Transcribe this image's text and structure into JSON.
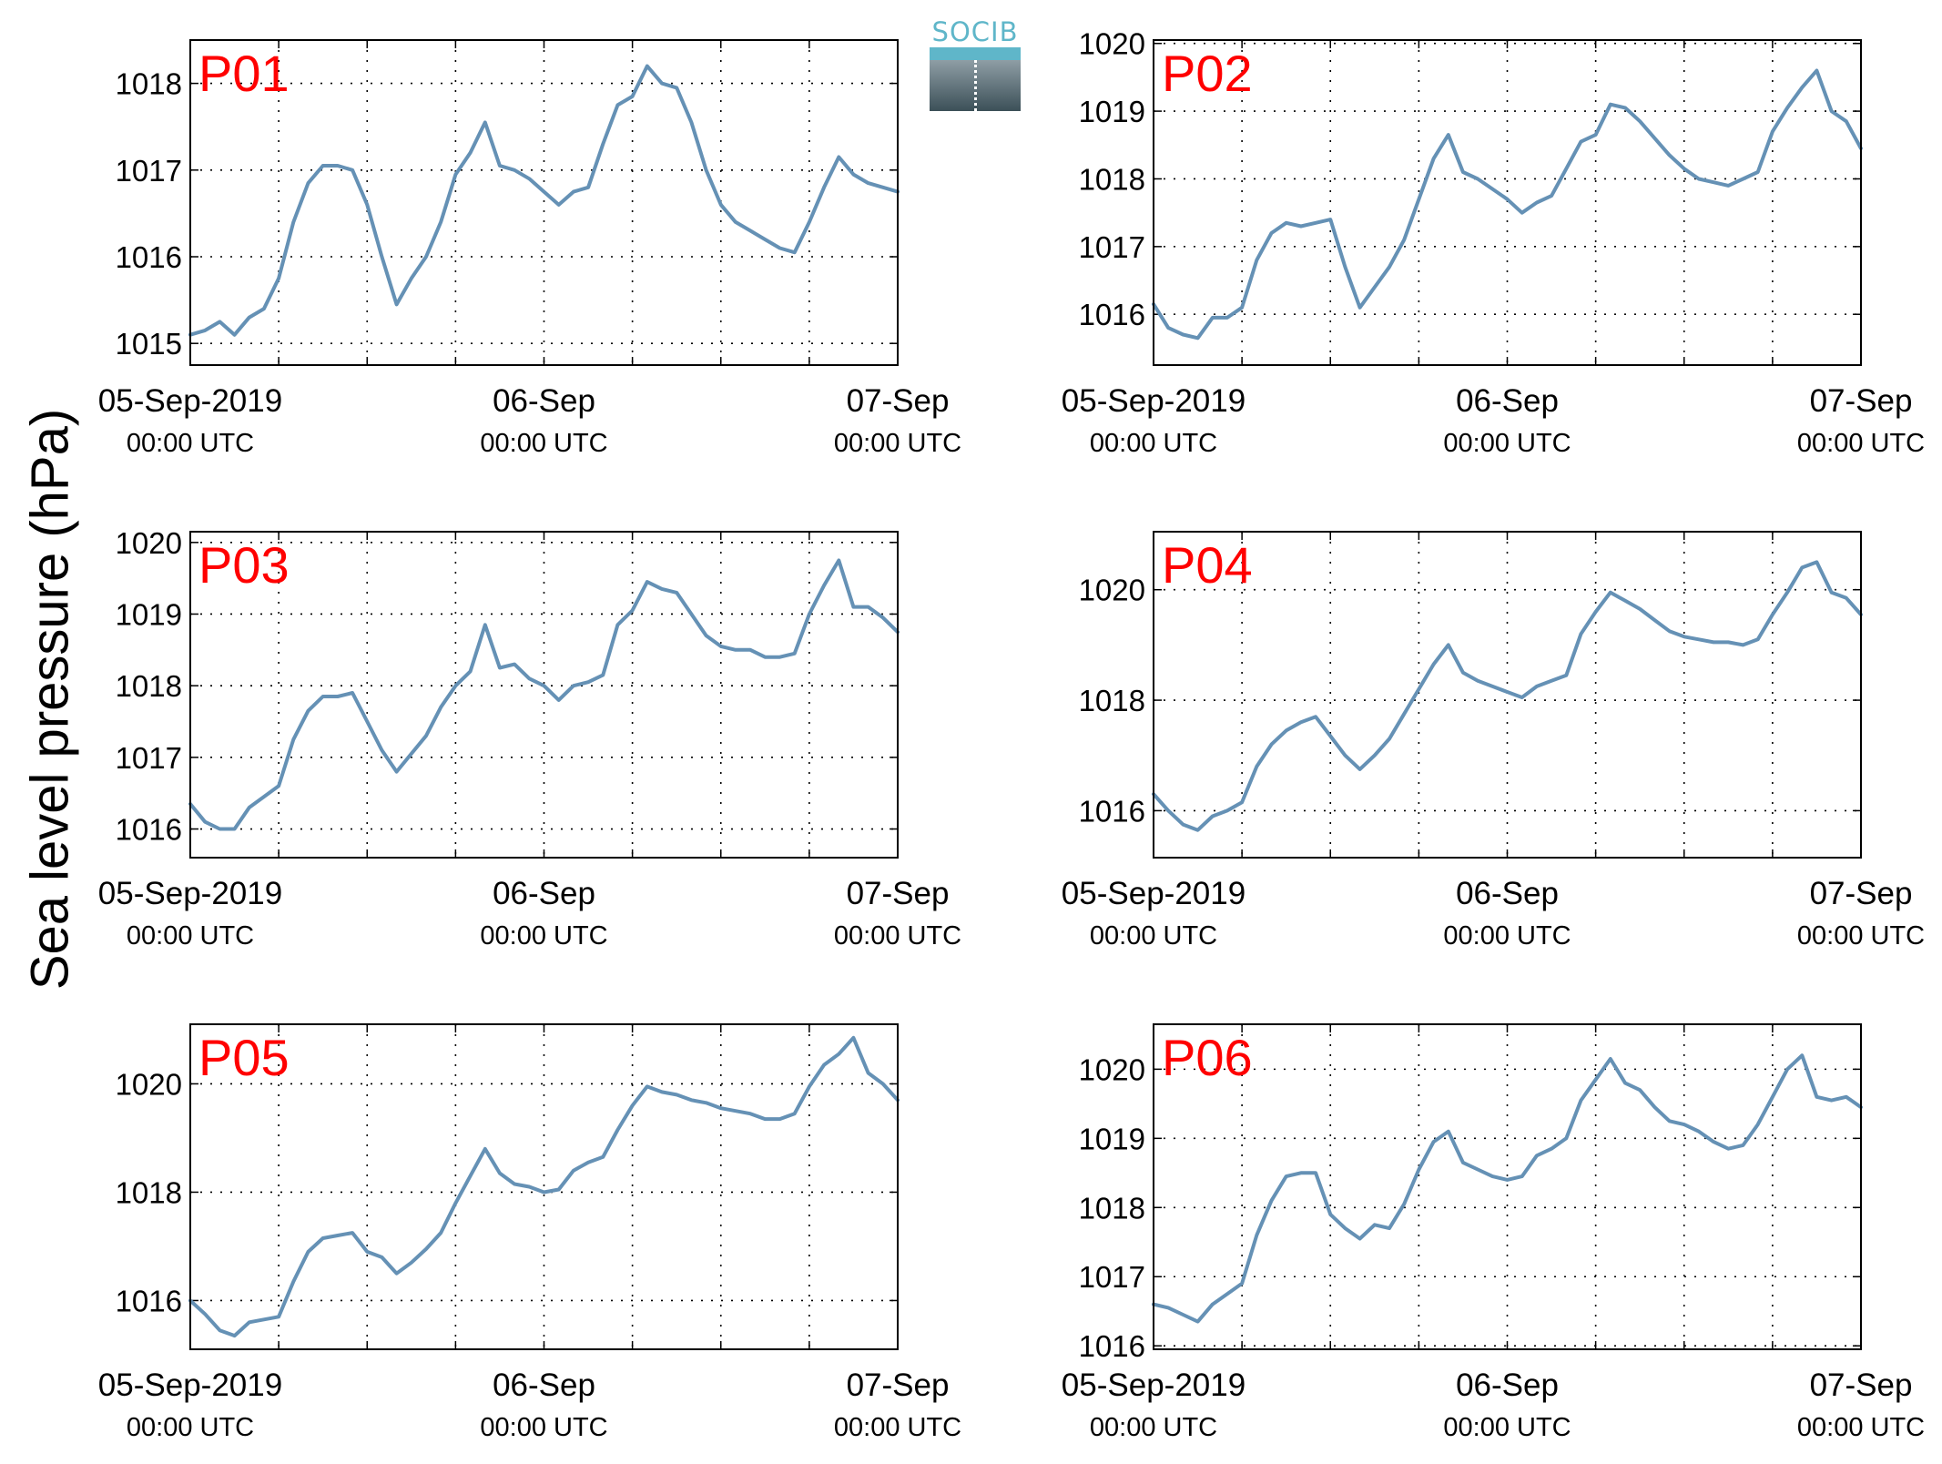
{
  "figure": {
    "ylabel": "Sea level pressure (hPa)",
    "logo_text": "SOCIB",
    "colors": {
      "line": "#6591b5",
      "panel_label": "#ff0000",
      "axes": "#000000",
      "grid": "#000000"
    }
  },
  "chart_data": [
    {
      "type": "line",
      "title": "P01",
      "x_ticks": [
        {
          "main": "05-Sep-2019",
          "sub": "00:00 UTC"
        },
        {
          "main": "06-Sep",
          "sub": "00:00 UTC"
        },
        {
          "main": "07-Sep",
          "sub": "00:00 UTC"
        }
      ],
      "xlim_hours": [
        0,
        48
      ],
      "ylim": [
        1014.75,
        1018.5
      ],
      "yticks": [
        1015,
        1016,
        1017,
        1018
      ],
      "grid": true,
      "series": [
        {
          "x_hours": [
            0,
            1,
            2,
            3,
            4,
            5,
            6,
            7,
            8,
            9,
            10,
            11,
            12,
            13,
            14,
            15,
            16,
            17,
            18,
            19,
            20,
            21,
            22,
            23,
            24,
            25,
            26,
            27,
            28,
            29,
            30,
            31,
            32,
            33,
            34,
            35,
            36,
            37,
            38,
            39,
            40,
            41,
            42,
            43,
            44,
            45,
            46,
            47,
            48
          ],
          "values": [
            1015.1,
            1015.15,
            1015.25,
            1015.1,
            1015.3,
            1015.4,
            1015.75,
            1016.4,
            1016.85,
            1017.05,
            1017.05,
            1017.0,
            1016.6,
            1016.0,
            1015.45,
            1015.75,
            1016.0,
            1016.4,
            1016.95,
            1017.2,
            1017.55,
            1017.05,
            1017.0,
            1016.9,
            1016.75,
            1016.6,
            1016.75,
            1016.8,
            1017.3,
            1017.75,
            1017.85,
            1018.2,
            1018.0,
            1017.95,
            1017.55,
            1017.0,
            1016.6,
            1016.4,
            1016.3,
            1016.2,
            1016.1,
            1016.05,
            1016.4,
            1016.8,
            1017.15,
            1016.95,
            1016.85,
            1016.8,
            1016.75
          ]
        }
      ]
    },
    {
      "type": "line",
      "title": "P02",
      "x_ticks": [
        {
          "main": "05-Sep-2019",
          "sub": "00:00 UTC"
        },
        {
          "main": "06-Sep",
          "sub": "00:00 UTC"
        },
        {
          "main": "07-Sep",
          "sub": "00:00 UTC"
        }
      ],
      "xlim_hours": [
        0,
        48
      ],
      "ylim": [
        1015.25,
        1020.05
      ],
      "yticks": [
        1016,
        1017,
        1018,
        1019,
        1020
      ],
      "grid": true,
      "series": [
        {
          "x_hours": [
            0,
            1,
            2,
            3,
            4,
            5,
            6,
            7,
            8,
            9,
            10,
            11,
            12,
            13,
            14,
            15,
            16,
            17,
            18,
            19,
            20,
            21,
            22,
            23,
            24,
            25,
            26,
            27,
            28,
            29,
            30,
            31,
            32,
            33,
            34,
            35,
            36,
            37,
            38,
            39,
            40,
            41,
            42,
            43,
            44,
            45,
            46,
            47,
            48
          ],
          "values": [
            1016.15,
            1015.8,
            1015.7,
            1015.65,
            1015.95,
            1015.95,
            1016.1,
            1016.8,
            1017.2,
            1017.35,
            1017.3,
            1017.35,
            1017.4,
            1016.7,
            1016.1,
            1016.4,
            1016.7,
            1017.1,
            1017.7,
            1018.3,
            1018.65,
            1018.1,
            1018.0,
            1017.85,
            1017.7,
            1017.5,
            1017.65,
            1017.75,
            1018.15,
            1018.55,
            1018.65,
            1019.1,
            1019.05,
            1018.85,
            1018.6,
            1018.35,
            1018.15,
            1018.0,
            1017.95,
            1017.9,
            1018.0,
            1018.1,
            1018.7,
            1019.05,
            1019.35,
            1019.6,
            1019.0,
            1018.85,
            1018.45
          ]
        }
      ]
    },
    {
      "type": "line",
      "title": "P03",
      "x_ticks": [
        {
          "main": "05-Sep-2019",
          "sub": "00:00 UTC"
        },
        {
          "main": "06-Sep",
          "sub": "00:00 UTC"
        },
        {
          "main": "07-Sep",
          "sub": "00:00 UTC"
        }
      ],
      "xlim_hours": [
        0,
        48
      ],
      "ylim": [
        1015.6,
        1020.15
      ],
      "yticks": [
        1016,
        1017,
        1018,
        1019,
        1020
      ],
      "grid": true,
      "series": [
        {
          "x_hours": [
            0,
            1,
            2,
            3,
            4,
            5,
            6,
            7,
            8,
            9,
            10,
            11,
            12,
            13,
            14,
            15,
            16,
            17,
            18,
            19,
            20,
            21,
            22,
            23,
            24,
            25,
            26,
            27,
            28,
            29,
            30,
            31,
            32,
            33,
            34,
            35,
            36,
            37,
            38,
            39,
            40,
            41,
            42,
            43,
            44,
            45,
            46,
            47,
            48
          ],
          "values": [
            1016.35,
            1016.1,
            1016.0,
            1016.0,
            1016.3,
            1016.45,
            1016.6,
            1017.25,
            1017.65,
            1017.85,
            1017.85,
            1017.9,
            1017.5,
            1017.1,
            1016.8,
            1017.05,
            1017.3,
            1017.7,
            1018.0,
            1018.2,
            1018.85,
            1018.25,
            1018.3,
            1018.1,
            1018.0,
            1017.8,
            1018.0,
            1018.05,
            1018.15,
            1018.85,
            1019.05,
            1019.45,
            1019.35,
            1019.3,
            1019.0,
            1018.7,
            1018.55,
            1018.5,
            1018.5,
            1018.4,
            1018.4,
            1018.45,
            1019.0,
            1019.4,
            1019.75,
            1019.1,
            1019.1,
            1018.95,
            1018.75
          ]
        }
      ]
    },
    {
      "type": "line",
      "title": "P04",
      "x_ticks": [
        {
          "main": "05-Sep-2019",
          "sub": "00:00 UTC"
        },
        {
          "main": "06-Sep",
          "sub": "00:00 UTC"
        },
        {
          "main": "07-Sep",
          "sub": "00:00 UTC"
        }
      ],
      "xlim_hours": [
        0,
        48
      ],
      "ylim": [
        1015.15,
        1021.05
      ],
      "yticks": [
        1016,
        1018,
        1020
      ],
      "grid": true,
      "series": [
        {
          "x_hours": [
            0,
            1,
            2,
            3,
            4,
            5,
            6,
            7,
            8,
            9,
            10,
            11,
            12,
            13,
            14,
            15,
            16,
            17,
            18,
            19,
            20,
            21,
            22,
            23,
            24,
            25,
            26,
            27,
            28,
            29,
            30,
            31,
            32,
            33,
            34,
            35,
            36,
            37,
            38,
            39,
            40,
            41,
            42,
            43,
            44,
            45,
            46,
            47,
            48
          ],
          "values": [
            1016.3,
            1016.0,
            1015.75,
            1015.65,
            1015.9,
            1016.0,
            1016.15,
            1016.8,
            1017.2,
            1017.45,
            1017.6,
            1017.7,
            1017.35,
            1017.0,
            1016.75,
            1017.0,
            1017.3,
            1017.75,
            1018.2,
            1018.65,
            1019.0,
            1018.5,
            1018.35,
            1018.25,
            1018.15,
            1018.05,
            1018.25,
            1018.35,
            1018.45,
            1019.2,
            1019.6,
            1019.95,
            1019.8,
            1019.65,
            1019.45,
            1019.25,
            1019.15,
            1019.1,
            1019.05,
            1019.05,
            1019.0,
            1019.1,
            1019.55,
            1019.95,
            1020.4,
            1020.5,
            1019.95,
            1019.85,
            1019.55
          ]
        }
      ]
    },
    {
      "type": "line",
      "title": "P05",
      "x_ticks": [
        {
          "main": "05-Sep-2019",
          "sub": "00:00 UTC"
        },
        {
          "main": "06-Sep",
          "sub": "00:00 UTC"
        },
        {
          "main": "07-Sep",
          "sub": "00:00 UTC"
        }
      ],
      "xlim_hours": [
        0,
        48
      ],
      "ylim": [
        1015.1,
        1021.1
      ],
      "yticks": [
        1016,
        1018,
        1020
      ],
      "grid": true,
      "series": [
        {
          "x_hours": [
            0,
            1,
            2,
            3,
            4,
            5,
            6,
            7,
            8,
            9,
            10,
            11,
            12,
            13,
            14,
            15,
            16,
            17,
            18,
            19,
            20,
            21,
            22,
            23,
            24,
            25,
            26,
            27,
            28,
            29,
            30,
            31,
            32,
            33,
            34,
            35,
            36,
            37,
            38,
            39,
            40,
            41,
            42,
            43,
            44,
            45,
            46,
            47,
            48
          ],
          "values": [
            1016.0,
            1015.75,
            1015.45,
            1015.35,
            1015.6,
            1015.65,
            1015.7,
            1016.35,
            1016.9,
            1017.15,
            1017.2,
            1017.25,
            1016.9,
            1016.8,
            1016.5,
            1016.7,
            1016.95,
            1017.25,
            1017.8,
            1018.3,
            1018.8,
            1018.35,
            1018.15,
            1018.1,
            1018.0,
            1018.05,
            1018.4,
            1018.55,
            1018.65,
            1019.15,
            1019.6,
            1019.95,
            1019.85,
            1019.8,
            1019.7,
            1019.65,
            1019.55,
            1019.5,
            1019.45,
            1019.35,
            1019.35,
            1019.45,
            1019.95,
            1020.35,
            1020.55,
            1020.85,
            1020.2,
            1020.0,
            1019.7
          ]
        }
      ]
    },
    {
      "type": "line",
      "title": "P06",
      "x_ticks": [
        {
          "main": "05-Sep-2019",
          "sub": "00:00 UTC"
        },
        {
          "main": "06-Sep",
          "sub": "00:00 UTC"
        },
        {
          "main": "07-Sep",
          "sub": "00:00 UTC"
        }
      ],
      "xlim_hours": [
        0,
        48
      ],
      "ylim": [
        1015.95,
        1020.65
      ],
      "yticks": [
        1016,
        1017,
        1018,
        1019,
        1020
      ],
      "grid": true,
      "series": [
        {
          "x_hours": [
            0,
            1,
            2,
            3,
            4,
            5,
            6,
            7,
            8,
            9,
            10,
            11,
            12,
            13,
            14,
            15,
            16,
            17,
            18,
            19,
            20,
            21,
            22,
            23,
            24,
            25,
            26,
            27,
            28,
            29,
            30,
            31,
            32,
            33,
            34,
            35,
            36,
            37,
            38,
            39,
            40,
            41,
            42,
            43,
            44,
            45,
            46,
            47,
            48
          ],
          "values": [
            1016.6,
            1016.55,
            1016.45,
            1016.35,
            1016.6,
            1016.75,
            1016.9,
            1017.6,
            1018.1,
            1018.45,
            1018.5,
            1018.5,
            1017.9,
            1017.7,
            1017.55,
            1017.75,
            1017.7,
            1018.05,
            1018.55,
            1018.95,
            1019.1,
            1018.65,
            1018.55,
            1018.45,
            1018.4,
            1018.45,
            1018.75,
            1018.85,
            1019.0,
            1019.55,
            1019.85,
            1020.15,
            1019.8,
            1019.7,
            1019.45,
            1019.25,
            1019.2,
            1019.1,
            1018.95,
            1018.85,
            1018.9,
            1019.2,
            1019.6,
            1020.0,
            1020.2,
            1019.6,
            1019.55,
            1019.6,
            1019.45
          ]
        }
      ]
    }
  ]
}
